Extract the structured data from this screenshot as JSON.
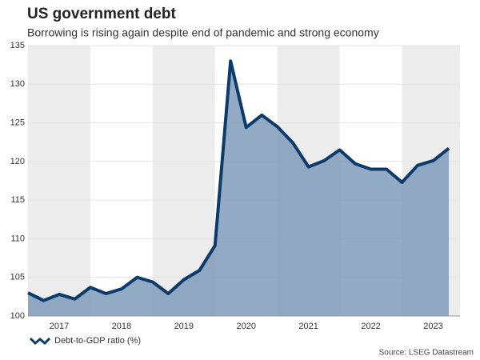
{
  "chart_data": {
    "type": "area",
    "title": "US government debt",
    "subtitle": "Borrowing is rising again despite end of pandemic and strong economy",
    "source": "Source: LSEG Datastream",
    "x": [
      2017,
      2017.25,
      2017.5,
      2017.75,
      2018,
      2018.25,
      2018.5,
      2018.75,
      2019,
      2019.25,
      2019.5,
      2019.75,
      2020,
      2020.25,
      2020.5,
      2020.75,
      2021,
      2021.25,
      2021.5,
      2021.75,
      2022,
      2022.25,
      2022.5,
      2022.75,
      2023,
      2023.25,
      2023.5,
      2023.75
    ],
    "series": [
      {
        "name": "Debt-to-GDP ratio (%)",
        "color": "#0b3a6b",
        "fill": "#7f9bb8",
        "values": [
          103,
          102,
          102.8,
          102.2,
          103.7,
          102.9,
          103.5,
          105,
          104.4,
          102.9,
          104.7,
          105.9,
          109.1,
          133,
          124.4,
          126,
          124.5,
          122.4,
          119.3,
          120.1,
          121.5,
          119.7,
          119,
          119,
          117.3,
          119.5,
          120.1,
          121.7
        ]
      }
    ],
    "xlim": [
      2017,
      2023.93
    ],
    "xticks": [
      {
        "value": 2017.5,
        "label": "2017"
      },
      {
        "value": 2018.5,
        "label": "2018"
      },
      {
        "value": 2019.5,
        "label": "2019"
      },
      {
        "value": 2020.5,
        "label": "2020"
      },
      {
        "value": 2021.5,
        "label": "2021"
      },
      {
        "value": 2022.5,
        "label": "2022"
      },
      {
        "value": 2023.5,
        "label": "2023"
      }
    ],
    "ylim": [
      100,
      135
    ],
    "yticks": [
      100,
      105,
      110,
      115,
      120,
      125,
      130,
      135
    ],
    "grid": true,
    "legend": "bottom-left"
  }
}
